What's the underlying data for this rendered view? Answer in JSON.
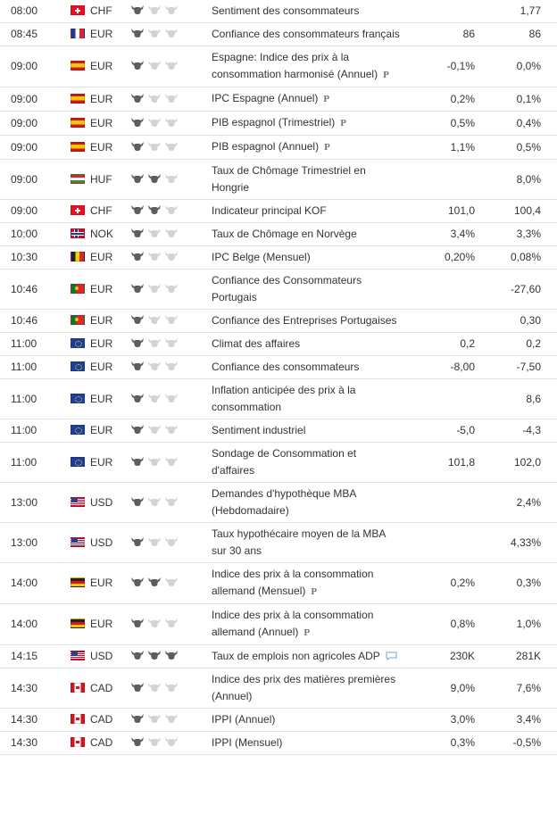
{
  "colors": {
    "border": "#e2e2e2",
    "bull_active": "#5e5e5e",
    "bull_inactive": "#d3d3d3"
  },
  "rows": [
    {
      "time": "08:00",
      "flag": "flag-switzerland-icon",
      "currency": "CHF",
      "importance": 1,
      "event": "Sentiment des consommateurs",
      "actual": "",
      "previous": "1,77",
      "marker": ""
    },
    {
      "time": "08:45",
      "flag": "flag-france-icon",
      "currency": "EUR",
      "importance": 1,
      "event": "Confiance des consommateurs français",
      "actual": "86",
      "previous": "86",
      "marker": ""
    },
    {
      "time": "09:00",
      "flag": "flag-spain-icon",
      "currency": "EUR",
      "importance": 1,
      "event": "Espagne: Indice des prix à la consommation harmonisé (Annuel)",
      "actual": "-0,1%",
      "previous": "0,0%",
      "marker": "P"
    },
    {
      "time": "09:00",
      "flag": "flag-spain-icon",
      "currency": "EUR",
      "importance": 1,
      "event": "IPC Espagne (Annuel)",
      "actual": "0,2%",
      "previous": "0,1%",
      "marker": "P"
    },
    {
      "time": "09:00",
      "flag": "flag-spain-icon",
      "currency": "EUR",
      "importance": 1,
      "event": "PIB espagnol (Trimestriel)",
      "actual": "0,5%",
      "previous": "0,4%",
      "marker": "P"
    },
    {
      "time": "09:00",
      "flag": "flag-spain-icon",
      "currency": "EUR",
      "importance": 1,
      "event": "PIB espagnol (Annuel)",
      "actual": "1,1%",
      "previous": "0,5%",
      "marker": "P"
    },
    {
      "time": "09:00",
      "flag": "flag-hungary-icon",
      "currency": "HUF",
      "importance": 2,
      "event": "Taux de Chômage Trimestriel en Hongrie",
      "actual": "",
      "previous": "8,0%",
      "marker": ""
    },
    {
      "time": "09:00",
      "flag": "flag-switzerland-icon",
      "currency": "CHF",
      "importance": 2,
      "event": "Indicateur principal KOF",
      "actual": "101,0",
      "previous": "100,4",
      "marker": ""
    },
    {
      "time": "10:00",
      "flag": "flag-norway-icon",
      "currency": "NOK",
      "importance": 1,
      "event": "Taux de Chômage en Norvège",
      "actual": "3,4%",
      "previous": "3,3%",
      "marker": ""
    },
    {
      "time": "10:30",
      "flag": "flag-belgium-icon",
      "currency": "EUR",
      "importance": 1,
      "event": "IPC Belge (Mensuel)",
      "actual": "0,20%",
      "previous": "0,08%",
      "marker": ""
    },
    {
      "time": "10:46",
      "flag": "flag-portugal-icon",
      "currency": "EUR",
      "importance": 1,
      "event": "Confiance des Consommateurs Portugais",
      "actual": "",
      "previous": "-27,60",
      "marker": ""
    },
    {
      "time": "10:46",
      "flag": "flag-portugal-icon",
      "currency": "EUR",
      "importance": 1,
      "event": "Confiance des Entreprises Portugaises",
      "actual": "",
      "previous": "0,30",
      "marker": ""
    },
    {
      "time": "11:00",
      "flag": "flag-eurozone-icon",
      "currency": "EUR",
      "importance": 1,
      "event": "Climat des affaires",
      "actual": "0,2",
      "previous": "0,2",
      "marker": ""
    },
    {
      "time": "11:00",
      "flag": "flag-eurozone-icon",
      "currency": "EUR",
      "importance": 1,
      "event": "Confiance des consommateurs",
      "actual": "-8,00",
      "previous": "-7,50",
      "marker": ""
    },
    {
      "time": "11:00",
      "flag": "flag-eurozone-icon",
      "currency": "EUR",
      "importance": 1,
      "event": "Inflation anticipée des prix à la consommation",
      "actual": "",
      "previous": "8,6",
      "marker": ""
    },
    {
      "time": "11:00",
      "flag": "flag-eurozone-icon",
      "currency": "EUR",
      "importance": 1,
      "event": "Sentiment industriel",
      "actual": "-5,0",
      "previous": "-4,3",
      "marker": ""
    },
    {
      "time": "11:00",
      "flag": "flag-eurozone-icon",
      "currency": "EUR",
      "importance": 1,
      "event": "Sondage de Consommation et d'affaires",
      "actual": "101,8",
      "previous": "102,0",
      "marker": ""
    },
    {
      "time": "13:00",
      "flag": "flag-usa-icon",
      "currency": "USD",
      "importance": 1,
      "event": "Demandes d'hypothèque MBA (Hebdomadaire)",
      "actual": "",
      "previous": "2,4%",
      "marker": ""
    },
    {
      "time": "13:00",
      "flag": "flag-usa-icon",
      "currency": "USD",
      "importance": 1,
      "event": "Taux hypothécaire moyen de la MBA sur 30 ans",
      "actual": "",
      "previous": "4,33%",
      "marker": ""
    },
    {
      "time": "14:00",
      "flag": "flag-germany-icon",
      "currency": "EUR",
      "importance": 2,
      "event": "Indice des prix à la consommation allemand (Mensuel)",
      "actual": "0,2%",
      "previous": "0,3%",
      "marker": "P"
    },
    {
      "time": "14:00",
      "flag": "flag-germany-icon",
      "currency": "EUR",
      "importance": 1,
      "event": "Indice des prix à la consommation allemand (Annuel)",
      "actual": "0,8%",
      "previous": "1,0%",
      "marker": "P"
    },
    {
      "time": "14:15",
      "flag": "flag-usa-icon",
      "currency": "USD",
      "importance": 3,
      "event": "Taux de emplois non agricoles ADP",
      "actual": "230K",
      "previous": "281K",
      "marker": "chat"
    },
    {
      "time": "14:30",
      "flag": "flag-canada-icon",
      "currency": "CAD",
      "importance": 1,
      "event": "Indice des prix des matières premières (Annuel)",
      "actual": "9,0%",
      "previous": "7,6%",
      "marker": ""
    },
    {
      "time": "14:30",
      "flag": "flag-canada-icon",
      "currency": "CAD",
      "importance": 1,
      "event": "IPPI (Annuel)",
      "actual": "3,0%",
      "previous": "3,4%",
      "marker": ""
    },
    {
      "time": "14:30",
      "flag": "flag-canada-icon",
      "currency": "CAD",
      "importance": 1,
      "event": "IPPI (Mensuel)",
      "actual": "0,3%",
      "previous": "-0,5%",
      "marker": ""
    }
  ]
}
